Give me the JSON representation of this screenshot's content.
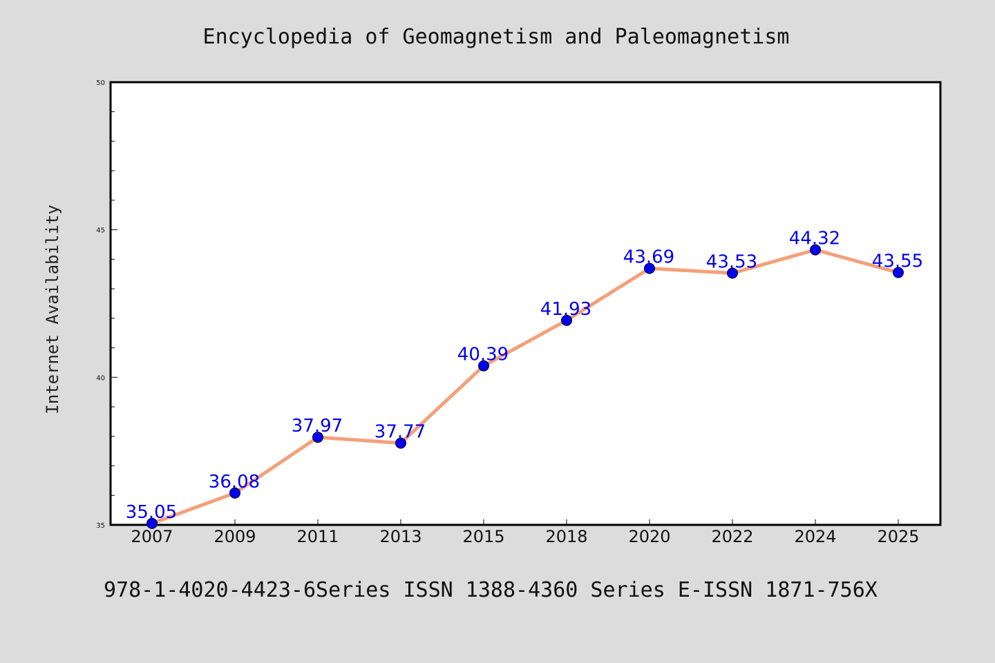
{
  "chart_data": {
    "type": "line",
    "title": "Encyclopedia of Geomagnetism and Paleomagnetism",
    "ylabel": "Internet Availability",
    "xlabel": "",
    "categories": [
      "2007",
      "2009",
      "2011",
      "2013",
      "2015",
      "2018",
      "2020",
      "2022",
      "2024",
      "2025"
    ],
    "values": [
      35.05,
      36.08,
      37.97,
      37.77,
      40.39,
      41.93,
      43.69,
      43.53,
      44.32,
      43.55
    ],
    "data_labels": [
      "35.05",
      "36.08",
      "37.97",
      "37.77",
      "40.39",
      "41.93",
      "43.69",
      "43.53",
      "44.32",
      "43.55"
    ],
    "ylim": [
      35,
      50
    ],
    "yticks": [
      "35",
      "40",
      "45",
      "50"
    ],
    "line_color": "#f4a07a",
    "marker_color": "#0000ee",
    "label_color": "#0000ee",
    "grid": false,
    "legend": "none"
  },
  "footer": {
    "text": "978-1-4020-4423-6Series ISSN 1388-4360 Series E-ISSN 1871-756X"
  }
}
